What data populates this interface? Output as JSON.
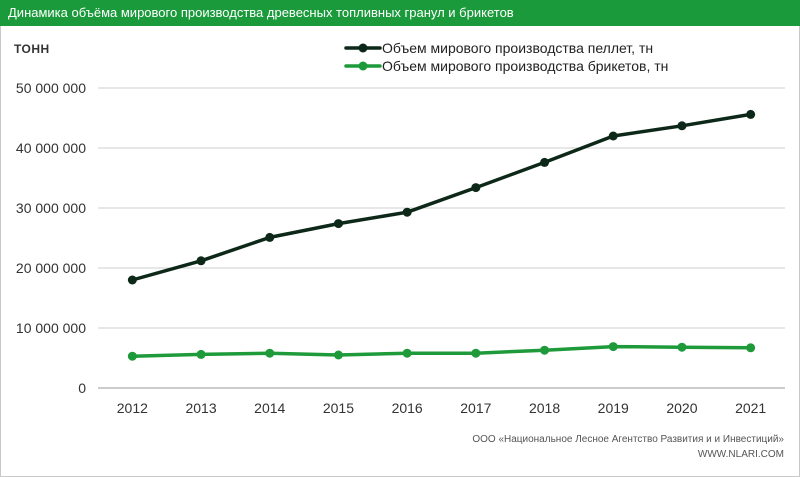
{
  "header": {
    "title": "Динамика объёма мирового производства древесных топливных гранул и брикетов",
    "bar_color": "#1b9a3c"
  },
  "footer": {
    "organization": "ООО «Национальное Лесное Агентство Развития и и Инвестиций»",
    "website": "WWW.NLARI.COM"
  },
  "chart_data": {
    "type": "line",
    "title": "Динамика объёма мирового производства древесных топливных гранул и брикетов",
    "ylabel": "тонн",
    "xlabel": "",
    "ylim": [
      0,
      50000000
    ],
    "yticks": [
      0,
      10000000,
      20000000,
      30000000,
      40000000,
      50000000
    ],
    "ytick_labels": [
      "0",
      "10 000 000",
      "20 000 000",
      "30 000 000",
      "40 000 000",
      "50 000 000"
    ],
    "grid": "horizontal",
    "legend_position": "top-right",
    "categories": [
      "2012",
      "2013",
      "2014",
      "2015",
      "2016",
      "2017",
      "2018",
      "2019",
      "2020",
      "2021"
    ],
    "series": [
      {
        "name": "Объем мирового производства пеллет, тн",
        "color": "#0d2818",
        "values": [
          18000000,
          21200000,
          25100000,
          27400000,
          29300000,
          33400000,
          37600000,
          42000000,
          43700000,
          45600000
        ]
      },
      {
        "name": "Объем мирового производства брикетов, тн",
        "color": "#1e9a3a",
        "values": [
          5300000,
          5600000,
          5800000,
          5500000,
          5800000,
          5800000,
          6300000,
          6900000,
          6800000,
          6700000
        ]
      }
    ]
  }
}
